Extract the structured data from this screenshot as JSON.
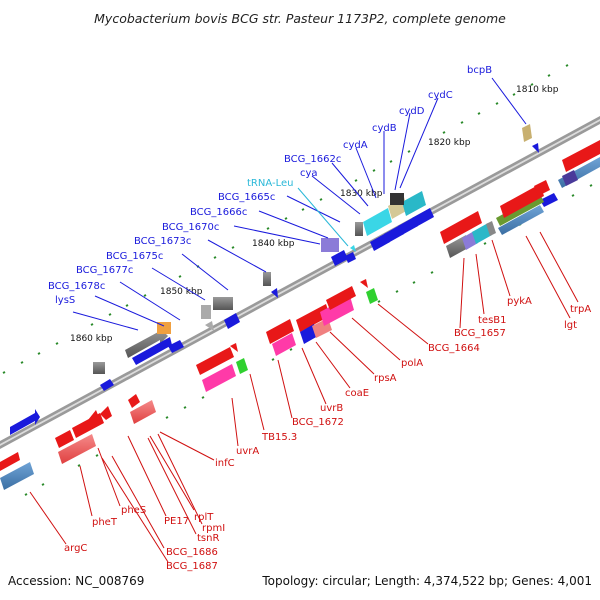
{
  "title": "Mycobacterium bovis BCG str. Pasteur 1173P2, complete genome",
  "footer": {
    "accession": "Accession: NC_008769",
    "topology": "Topology: circular; Length: 4,374,522 bp; Genes: 4,001"
  },
  "ticks": [
    {
      "label": "1810 kbp"
    },
    {
      "label": "1820 kbp"
    },
    {
      "label": "1830 kbp"
    },
    {
      "label": "1840 kbp"
    },
    {
      "label": "1850 kbp"
    },
    {
      "label": "1860 kbp"
    }
  ],
  "colors": {
    "reverse_label": "#1a1adc",
    "forward_label": "#d01010",
    "trna_label": "#2ab8d8",
    "backbone": "#8a8a8a"
  },
  "labels_reverse": [
    {
      "text": "bcpB"
    },
    {
      "text": "cydC"
    },
    {
      "text": "cydD"
    },
    {
      "text": "cydB"
    },
    {
      "text": "cydA"
    },
    {
      "text": "BCG_1662c"
    },
    {
      "text": "cya"
    },
    {
      "text": "tRNA-Leu"
    },
    {
      "text": "BCG_1665c"
    },
    {
      "text": "BCG_1666c"
    },
    {
      "text": "BCG_1670c"
    },
    {
      "text": "BCG_1673c"
    },
    {
      "text": "BCG_1675c"
    },
    {
      "text": "BCG_1677c"
    },
    {
      "text": "BCG_1678c"
    },
    {
      "text": "lysS"
    }
  ],
  "labels_forward": [
    {
      "text": "trpA"
    },
    {
      "text": "lgt"
    },
    {
      "text": "pykA"
    },
    {
      "text": "tesB1"
    },
    {
      "text": "BCG_1657"
    },
    {
      "text": "BCG_1664"
    },
    {
      "text": "polA"
    },
    {
      "text": "rpsA"
    },
    {
      "text": "coaE"
    },
    {
      "text": "uvrB"
    },
    {
      "text": "BCG_1672"
    },
    {
      "text": "TB15.3"
    },
    {
      "text": "uvrA"
    },
    {
      "text": "infC"
    },
    {
      "text": "rpmI"
    },
    {
      "text": "rplT"
    },
    {
      "text": "tsnR"
    },
    {
      "text": "PE17"
    },
    {
      "text": "pheS"
    },
    {
      "text": "BCG_1686"
    },
    {
      "text": "BCG_1687"
    },
    {
      "text": "pheT"
    },
    {
      "text": "argC"
    }
  ]
}
